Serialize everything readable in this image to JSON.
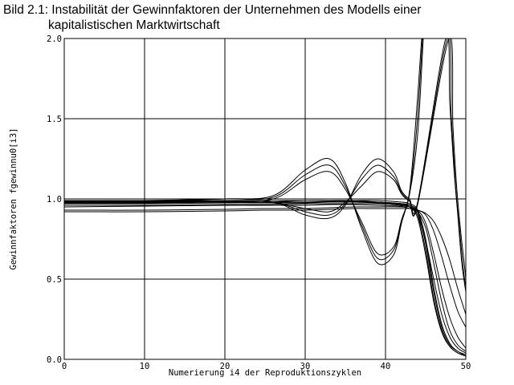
{
  "title": {
    "line1": "Bild 2.1: Instabilität der Gewinnfaktoren der Unternehmen des Modells einer",
    "line2": "kapitalistischen Marktwirtschaft"
  },
  "chart_data": {
    "type": "line",
    "xlabel": "Numerierung i4 der Reproduktionszyklen",
    "ylabel": "Gewinnfaktoren fgewinnu0[i3]",
    "xlim": [
      0,
      50
    ],
    "ylim": [
      0.0,
      2.0
    ],
    "xticks": [
      "0",
      "10",
      "20",
      "30",
      "40",
      "50"
    ],
    "yticks": [
      "0.0",
      "0.5",
      "1.0",
      "1.5",
      "2.0"
    ],
    "grid": true,
    "line_color": "#000000",
    "series": [
      {
        "x": [
          0,
          10,
          20,
          25,
          30,
          33,
          36,
          39,
          42,
          43,
          44,
          45,
          46,
          47,
          48,
          49,
          50
        ],
        "y": [
          0.99,
          0.99,
          0.99,
          0.99,
          0.99,
          0.99,
          0.99,
          0.99,
          0.98,
          0.97,
          0.93,
          0.75,
          0.45,
          0.22,
          0.1,
          0.05,
          0.03
        ]
      },
      {
        "x": [
          0,
          10,
          20,
          25,
          30,
          33,
          36,
          39,
          42,
          43,
          44,
          45,
          46,
          47,
          48,
          49,
          50
        ],
        "y": [
          0.985,
          0.985,
          0.985,
          0.98,
          0.98,
          0.98,
          0.98,
          0.98,
          0.97,
          0.96,
          0.92,
          0.72,
          0.42,
          0.2,
          0.09,
          0.05,
          0.02
        ]
      },
      {
        "x": [
          0,
          10,
          20,
          25,
          30,
          33,
          36,
          39,
          42,
          43,
          44,
          45,
          46,
          47,
          48,
          49,
          50
        ],
        "y": [
          0.98,
          0.98,
          0.98,
          0.98,
          0.99,
          0.99,
          0.99,
          0.98,
          0.97,
          0.96,
          0.9,
          0.68,
          0.38,
          0.18,
          0.08,
          0.04,
          0.02
        ]
      },
      {
        "x": [
          0,
          10,
          20,
          25,
          30,
          33,
          36,
          39,
          42,
          43,
          44,
          45,
          46,
          47,
          48,
          49,
          50
        ],
        "y": [
          0.975,
          0.975,
          0.98,
          0.98,
          0.98,
          0.985,
          0.985,
          0.98,
          0.97,
          0.95,
          0.88,
          0.65,
          0.36,
          0.17,
          0.08,
          0.04,
          0.02
        ]
      },
      {
        "x": [
          0,
          10,
          20,
          25,
          30,
          33,
          36,
          39,
          42,
          43,
          44,
          45,
          46,
          47,
          48,
          49,
          50
        ],
        "y": [
          0.97,
          0.97,
          0.975,
          0.975,
          0.975,
          0.98,
          0.98,
          0.975,
          0.965,
          0.95,
          0.9,
          0.74,
          0.5,
          0.28,
          0.14,
          0.07,
          0.04
        ]
      },
      {
        "x": [
          0,
          10,
          20,
          25,
          30,
          33,
          36,
          39,
          42,
          43,
          44,
          45,
          46,
          47,
          48,
          49,
          50
        ],
        "y": [
          0.96,
          0.96,
          0.965,
          0.965,
          0.97,
          0.97,
          0.97,
          0.97,
          0.96,
          0.95,
          0.92,
          0.82,
          0.6,
          0.36,
          0.18,
          0.09,
          0.05
        ]
      },
      {
        "x": [
          0,
          10,
          20,
          25,
          30,
          33,
          36,
          39,
          42,
          43,
          44,
          45,
          46,
          47,
          48,
          49,
          50
        ],
        "y": [
          0.95,
          0.955,
          0.96,
          0.96,
          0.96,
          0.965,
          0.965,
          0.96,
          0.955,
          0.95,
          0.93,
          0.85,
          0.66,
          0.44,
          0.26,
          0.14,
          0.07
        ]
      },
      {
        "x": [
          0,
          10,
          20,
          25,
          30,
          33,
          36,
          39,
          42,
          43,
          44,
          45,
          46,
          47,
          48,
          49,
          50
        ],
        "y": [
          0.93,
          0.93,
          0.935,
          0.94,
          0.94,
          0.945,
          0.95,
          0.95,
          0.95,
          0.94,
          0.93,
          0.9,
          0.8,
          0.64,
          0.46,
          0.3,
          0.2
        ]
      },
      {
        "x": [
          0,
          10,
          20,
          25,
          30,
          33,
          36,
          39,
          42,
          43,
          44,
          45,
          46,
          47,
          48,
          49,
          50
        ],
        "y": [
          0.92,
          0.92,
          0.925,
          0.93,
          0.93,
          0.935,
          0.94,
          0.94,
          0.94,
          0.94,
          0.93,
          0.91,
          0.86,
          0.76,
          0.62,
          0.44,
          0.28
        ]
      },
      {
        "x": [
          0,
          10,
          20,
          26,
          30,
          33,
          35,
          37,
          39,
          41,
          42,
          43,
          43.8,
          44.5
        ],
        "y": [
          0.99,
          0.99,
          1.0,
          1.02,
          1.18,
          1.25,
          1.1,
          0.82,
          0.6,
          0.65,
          0.85,
          1.05,
          1.5,
          2.0
        ]
      },
      {
        "x": [
          0,
          10,
          20,
          26,
          30,
          33,
          35,
          37,
          39,
          41,
          42,
          43,
          43.9,
          44.6
        ],
        "y": [
          0.99,
          0.99,
          1.0,
          1.01,
          1.15,
          1.21,
          1.08,
          0.84,
          0.63,
          0.68,
          0.86,
          1.04,
          1.45,
          2.0
        ]
      },
      {
        "x": [
          0,
          10,
          20,
          26,
          30,
          33,
          35,
          37,
          39,
          41,
          42,
          43,
          44,
          44.7
        ],
        "y": [
          0.985,
          0.985,
          0.99,
          1.0,
          1.12,
          1.17,
          1.06,
          0.86,
          0.66,
          0.7,
          0.87,
          1.03,
          1.4,
          2.0
        ]
      },
      {
        "x": [
          0,
          10,
          20,
          26,
          30,
          33,
          35,
          37,
          39,
          41,
          42,
          43,
          44,
          47.5,
          48,
          48.5,
          49,
          49.5,
          50
        ],
        "y": [
          0.98,
          0.98,
          0.99,
          0.98,
          0.9,
          0.88,
          0.96,
          1.15,
          1.25,
          1.17,
          1.05,
          1.0,
          0.98,
          2.0,
          1.6,
          1.2,
          0.9,
          0.6,
          0.42
        ]
      },
      {
        "x": [
          0,
          10,
          20,
          26,
          30,
          33,
          35,
          37,
          39,
          41,
          42,
          43,
          44,
          47.7,
          48.2,
          48.7,
          49.2,
          49.7,
          50
        ],
        "y": [
          0.98,
          0.98,
          0.99,
          0.98,
          0.92,
          0.9,
          0.97,
          1.12,
          1.21,
          1.14,
          1.04,
          0.99,
          0.97,
          2.0,
          1.5,
          1.1,
          0.82,
          0.56,
          0.45
        ]
      },
      {
        "x": [
          0,
          10,
          20,
          26,
          30,
          33,
          35,
          37,
          39,
          41,
          42,
          43,
          44,
          47.9,
          48.4,
          48.9,
          49.4,
          49.8,
          50
        ],
        "y": [
          0.975,
          0.975,
          0.985,
          0.975,
          0.94,
          0.92,
          0.98,
          1.08,
          1.17,
          1.12,
          1.03,
          0.985,
          0.965,
          2.0,
          1.45,
          1.05,
          0.78,
          0.6,
          0.5
        ]
      }
    ]
  }
}
